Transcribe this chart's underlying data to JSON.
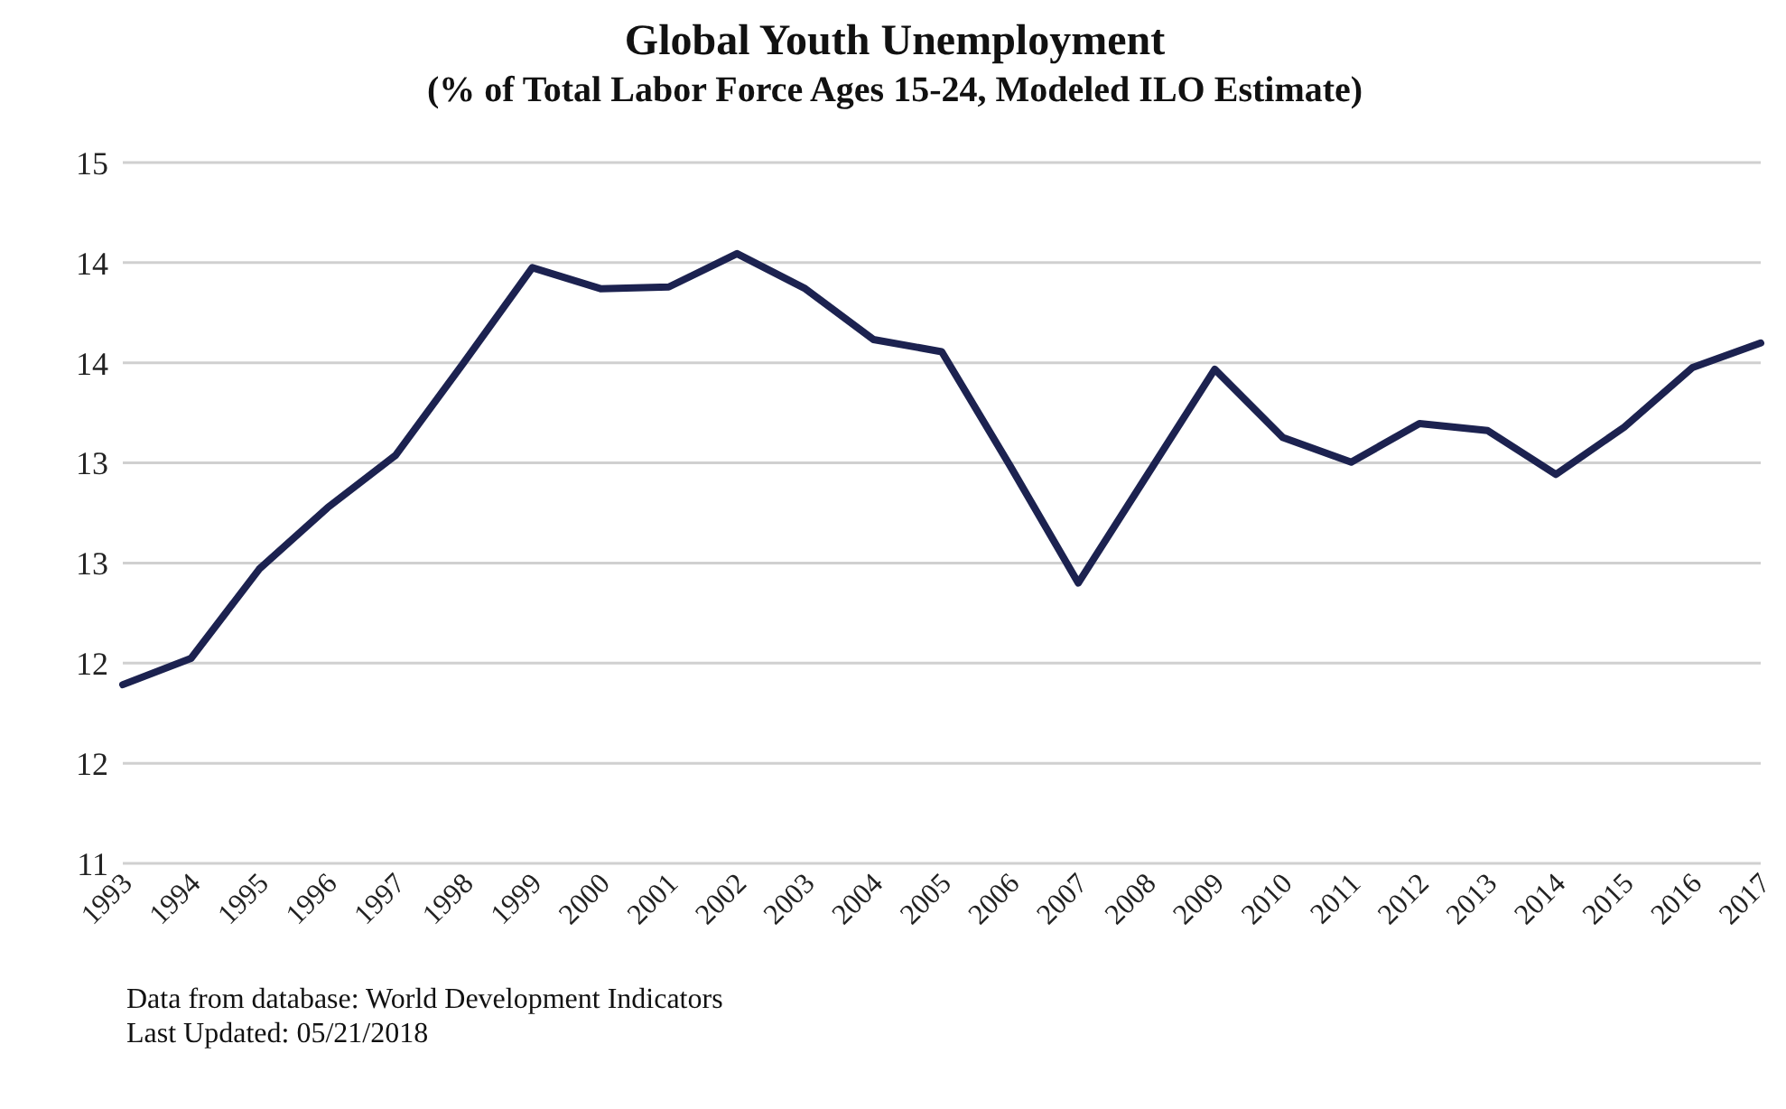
{
  "chart_data": {
    "type": "line",
    "title": "Global Youth Unemployment",
    "subtitle": "(% of Total Labor Force Ages 15-24, Modeled ILO Estimate)",
    "categories": [
      "1993",
      "1994",
      "1995",
      "1996",
      "1997",
      "1998",
      "1999",
      "2000",
      "2001",
      "2002",
      "2003",
      "2004",
      "2005",
      "2006",
      "2007",
      "2008",
      "2009",
      "2010",
      "2011",
      "2012",
      "2013",
      "2014",
      "2015",
      "2016",
      "2017"
    ],
    "series": [
      {
        "color": "#1c2250",
        "values": [
          12.02,
          12.17,
          12.68,
          13.03,
          13.33,
          13.86,
          14.4,
          14.28,
          14.29,
          14.48,
          14.28,
          13.99,
          13.92,
          13.27,
          12.6,
          13.21,
          13.82,
          13.43,
          13.29,
          13.51,
          13.47,
          13.22,
          13.49,
          13.83,
          13.97
        ]
      }
    ],
    "ylim": [
      11,
      15
    ],
    "yticks": [
      {
        "value": 11,
        "label": "11"
      },
      {
        "value": 11.571,
        "label": "12"
      },
      {
        "value": 12.143,
        "label": "12"
      },
      {
        "value": 12.714,
        "label": "13"
      },
      {
        "value": 13.286,
        "label": "13"
      },
      {
        "value": 13.857,
        "label": "14"
      },
      {
        "value": 14.429,
        "label": "14"
      },
      {
        "value": 15,
        "label": "15"
      }
    ],
    "grid": "y",
    "legend": false,
    "marker": "none",
    "line_style": "solid",
    "annotations": [
      "Data from database: World Development Indicators",
      "Last Updated: 05/21/2018"
    ]
  }
}
